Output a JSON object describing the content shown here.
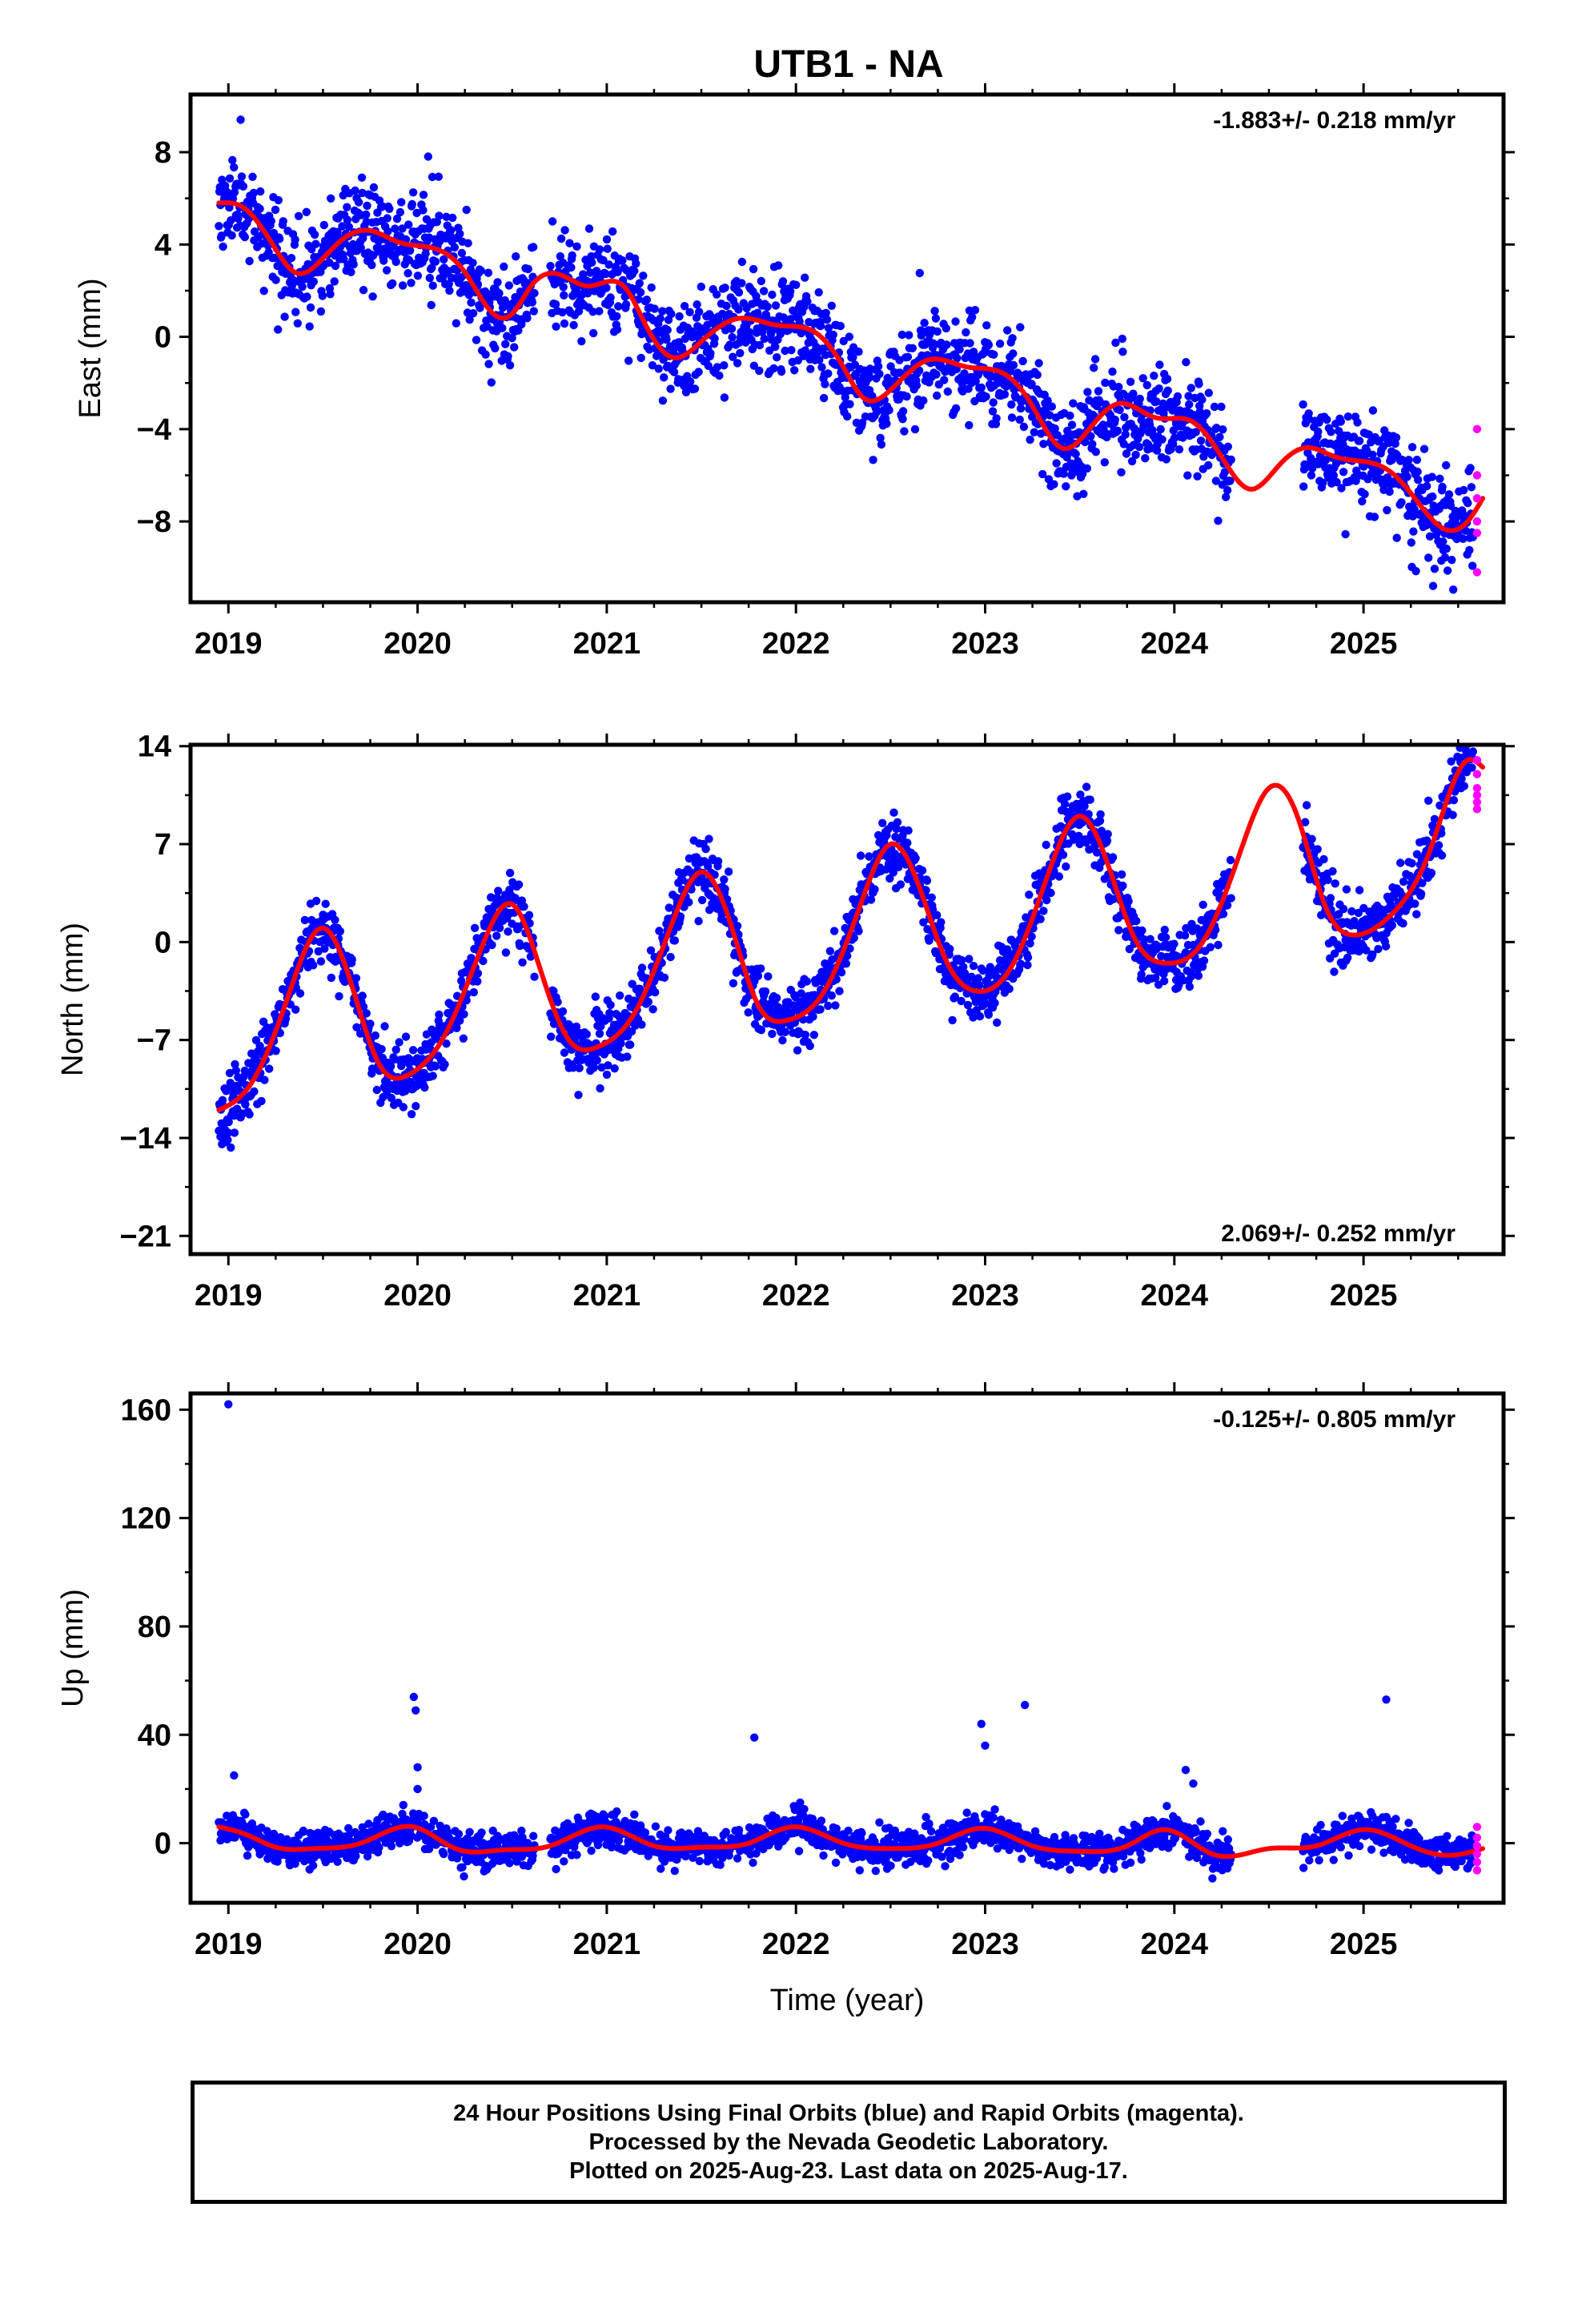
{
  "title": "UTB1 - NA",
  "colors": {
    "final_orbits": "#0000ff",
    "rapid_orbits": "#ff00ff",
    "model_fit": "#ff0000",
    "axes": "#000000"
  },
  "chart_data": [
    {
      "type": "scatter",
      "component": "East",
      "ylabel": "East (mm)",
      "xlim": [
        2018.8,
        2025.74
      ],
      "ylim": [
        -11.5,
        10.5
      ],
      "xticks": [
        2019,
        2020,
        2021,
        2022,
        2023,
        2024,
        2025
      ],
      "xtick_labels": [
        "2019",
        "2020",
        "2021",
        "2022",
        "2023",
        "2024",
        "2025"
      ],
      "yticks": [
        8,
        4,
        0,
        -4,
        -8
      ],
      "ytick_labels": [
        "8",
        "4",
        "0",
        "−4",
        "−8"
      ],
      "rate_label": "-1.883+/- 0.218 mm/yr",
      "rate_position": "top-right",
      "fit_knots": {
        "x": [
          2018.95,
          2019.08,
          2019.25,
          2019.35,
          2019.5,
          2019.6,
          2019.75,
          2019.9,
          2020.1,
          2020.25,
          2020.4,
          2020.5,
          2020.6,
          2020.75,
          2020.9,
          2021.1,
          2021.2,
          2021.35,
          2021.5,
          2021.7,
          2021.9,
          2022.1,
          2022.25,
          2022.35,
          2022.5,
          2022.7,
          2022.9,
          2023.1,
          2023.25,
          2023.4,
          2023.55,
          2023.7,
          2023.9,
          2024.1,
          2024.25,
          2024.4,
          2024.55,
          2024.7,
          2024.85,
          2025.0,
          2025.15,
          2025.3,
          2025.42,
          2025.55,
          2025.63
        ],
        "y": [
          5.8,
          5.6,
          3.8,
          2.8,
          3.4,
          4.2,
          4.6,
          4.1,
          3.8,
          2.8,
          1.0,
          1.0,
          2.2,
          2.7,
          2.2,
          2.1,
          0.6,
          -0.9,
          -0.2,
          0.8,
          0.5,
          0.2,
          -1.3,
          -2.6,
          -2.3,
          -1.0,
          -1.3,
          -1.6,
          -3.0,
          -4.8,
          -4.0,
          -2.9,
          -3.5,
          -3.7,
          -5.2,
          -6.6,
          -5.6,
          -4.8,
          -5.2,
          -5.4,
          -5.9,
          -7.3,
          -8.3,
          -8.0,
          -7.0
        ]
      },
      "final_period": [
        2018.95,
        2025.58
      ],
      "rapid_x": [
        2025.6,
        2025.6,
        2025.6,
        2025.6,
        2025.6,
        2025.6
      ],
      "rapid_y": [
        -4.0,
        -6.0,
        -7.0,
        -8.0,
        -8.5,
        -10.2
      ]
    },
    {
      "type": "scatter",
      "component": "North",
      "ylabel": "North (mm)",
      "xlim": [
        2018.8,
        2025.74
      ],
      "ylim": [
        -22.3,
        14.1
      ],
      "xticks": [
        2019,
        2020,
        2021,
        2022,
        2023,
        2024,
        2025
      ],
      "xtick_labels": [
        "2019",
        "2020",
        "2021",
        "2022",
        "2023",
        "2024",
        "2025"
      ],
      "yticks": [
        14,
        7,
        0,
        -7,
        -14,
        -21
      ],
      "ytick_labels": [
        "14",
        "7",
        "0",
        "−7",
        "−14",
        "−21"
      ],
      "rate_label": "2.069+/- 0.252 mm/yr",
      "rate_position": "bottom-right",
      "fit_knots": {
        "x": [
          2018.95,
          2019.1,
          2019.3,
          2019.5,
          2019.65,
          2019.8,
          2019.95,
          2020.15,
          2020.35,
          2020.5,
          2020.65,
          2020.8,
          2020.95,
          2021.15,
          2021.35,
          2021.5,
          2021.65,
          2021.8,
          2021.95,
          2022.15,
          2022.35,
          2022.5,
          2022.65,
          2022.8,
          2022.95,
          2023.15,
          2023.35,
          2023.5,
          2023.65,
          2023.8,
          2023.95,
          2024.15,
          2024.35,
          2024.5,
          2024.65,
          2024.8,
          2024.95,
          2025.15,
          2025.35,
          2025.55,
          2025.63
        ],
        "y": [
          -12.0,
          -10.5,
          -4.5,
          1.0,
          -3.0,
          -8.8,
          -9.5,
          -6.5,
          0.0,
          2.7,
          -2.0,
          -7.0,
          -7.5,
          -5.0,
          1.5,
          5.0,
          1.5,
          -4.5,
          -5.6,
          -3.5,
          3.0,
          7.0,
          4.0,
          -1.5,
          -3.5,
          -1.5,
          5.5,
          9.0,
          5.5,
          0.0,
          -1.5,
          0.0,
          6.5,
          11.0,
          9.0,
          2.5,
          0.5,
          2.0,
          6.5,
          13.0,
          12.5
        ]
      },
      "final_period": [
        2018.95,
        2025.58
      ],
      "rapid_x": [
        2025.6,
        2025.6,
        2025.6,
        2025.6,
        2025.6,
        2025.6
      ],
      "rapid_y": [
        13.0,
        12.0,
        11.0,
        10.5,
        10.0,
        9.5
      ]
    },
    {
      "type": "scatter",
      "component": "Up",
      "ylabel": "Up (mm)",
      "xlabel": "Time (year)",
      "xlim": [
        2018.8,
        2025.74
      ],
      "ylim": [
        -22.0,
        166.0
      ],
      "xticks": [
        2019,
        2020,
        2021,
        2022,
        2023,
        2024,
        2025
      ],
      "xtick_labels": [
        "2019",
        "2020",
        "2021",
        "2022",
        "2023",
        "2024",
        "2025"
      ],
      "yticks": [
        160,
        120,
        80,
        40,
        0
      ],
      "ytick_labels": [
        "160",
        "120",
        "80",
        "40",
        "0"
      ],
      "rate_label": "-0.125+/- 0.805 mm/yr",
      "rate_position": "top-right",
      "fit_knots": {
        "x": [
          2018.95,
          2019.1,
          2019.25,
          2019.45,
          2019.7,
          2019.98,
          2020.2,
          2020.45,
          2020.7,
          2020.98,
          2021.25,
          2021.5,
          2021.75,
          2021.98,
          2022.25,
          2022.5,
          2022.75,
          2022.98,
          2023.25,
          2023.5,
          2023.75,
          2023.95,
          2024.2,
          2024.5,
          2024.75,
          2025.0,
          2025.25,
          2025.45,
          2025.63
        ],
        "y": [
          6.0,
          3.0,
          -1.5,
          -2.0,
          0.0,
          6.0,
          -2.0,
          -2.5,
          -1.0,
          6.0,
          -1.0,
          -1.5,
          0.0,
          6.0,
          0.0,
          -2.0,
          0.0,
          5.5,
          -1.0,
          -3.0,
          -1.0,
          5.0,
          -4.0,
          -2.0,
          -1.0,
          5.0,
          -1.0,
          -4.5,
          -2.0
        ]
      },
      "final_period": [
        2018.95,
        2025.58
      ],
      "outliers_x": [
        2019.0,
        2019.03,
        2019.98,
        2019.99,
        2020.0,
        2020.0,
        2021.78,
        2022.98,
        2023.0,
        2023.21,
        2024.06,
        2024.1,
        2025.12
      ],
      "outliers_y": [
        162,
        25,
        54,
        49,
        28,
        20,
        39,
        44,
        36,
        51,
        27,
        22,
        53
      ],
      "rapid_x": [
        2025.6,
        2025.6,
        2025.6,
        2025.6,
        2025.6,
        2025.6
      ],
      "rapid_y": [
        6.0,
        2.0,
        -1.0,
        -4.0,
        -7.0,
        -10.0
      ]
    }
  ],
  "footer": {
    "line1": "24 Hour Positions Using Final Orbits (blue) and Rapid Orbits (magenta).",
    "line2": "Processed by the Nevada Geodetic Laboratory.",
    "line3": "Plotted on 2025-Aug-23. Last data on 2025-Aug-17."
  }
}
